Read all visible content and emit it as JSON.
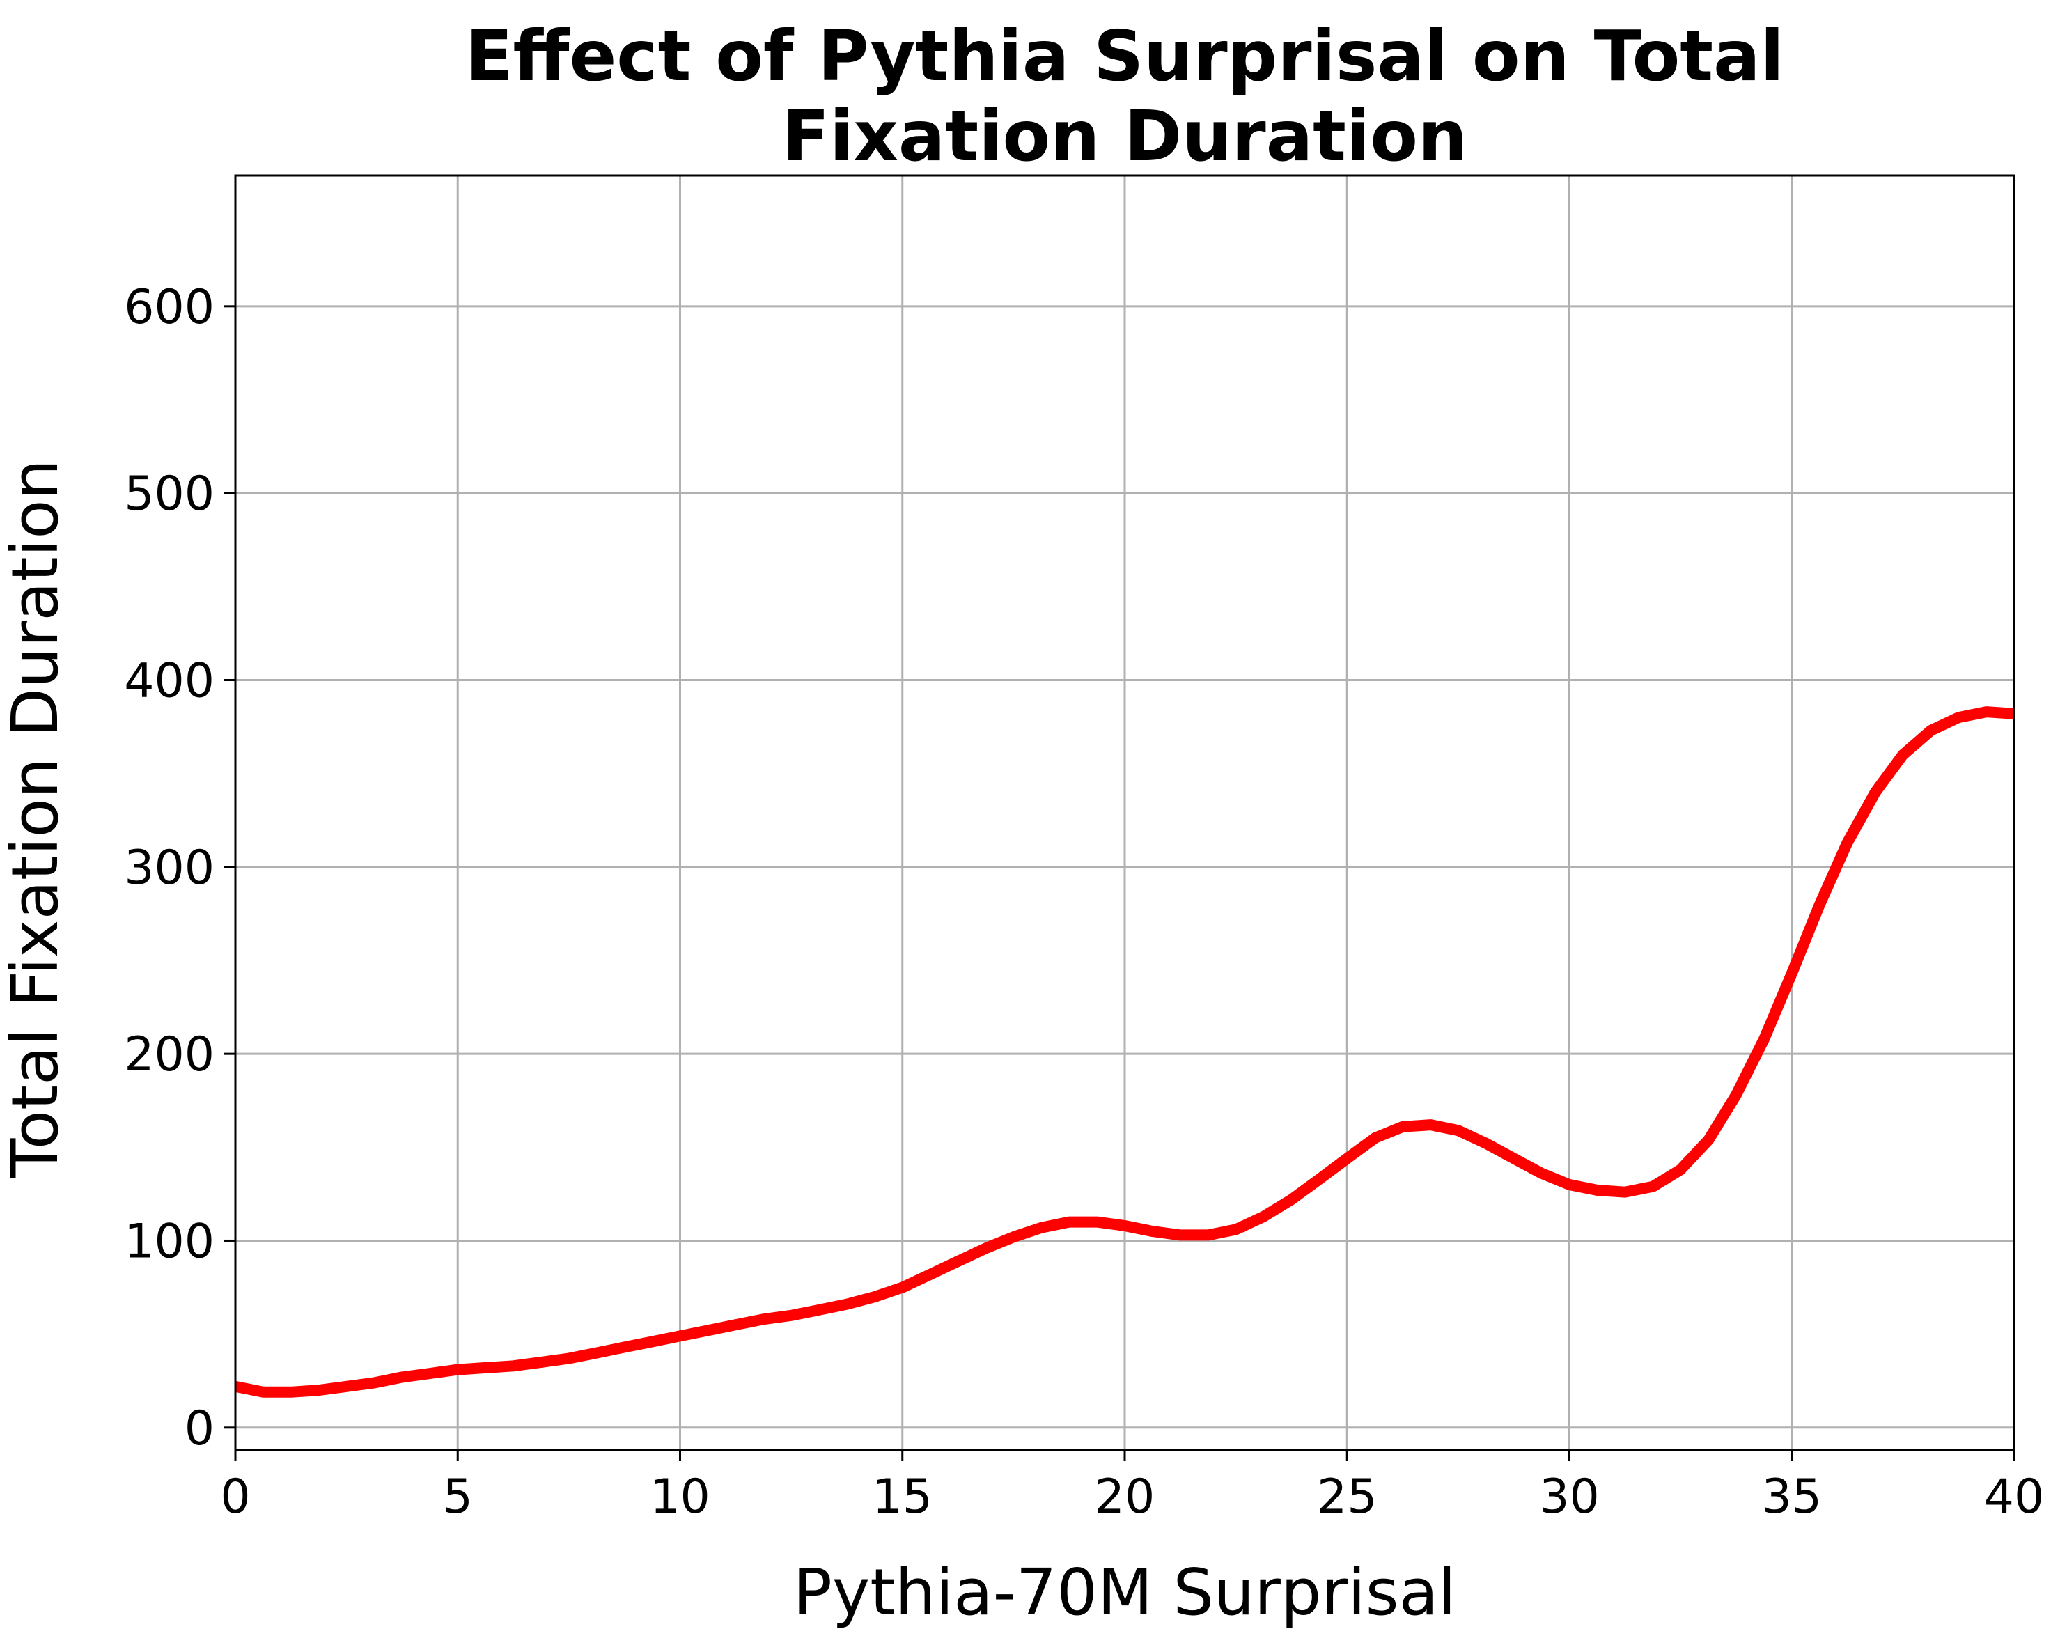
{
  "chart_data": {
    "type": "line",
    "title": [
      "Effect of Pythia Surprisal on Total",
      "Fixation Duration"
    ],
    "xlabel": "Pythia-70M Surprisal",
    "ylabel": "Total Fixation Duration",
    "xlim": [
      0,
      40
    ],
    "ylim": [
      -12,
      670
    ],
    "xticks": [
      0,
      5,
      10,
      15,
      20,
      25,
      30,
      35,
      40
    ],
    "yticks": [
      0,
      100,
      200,
      300,
      400,
      500,
      600
    ],
    "grid": true,
    "legend": "none",
    "series": [
      {
        "color": "#ff0000",
        "x": [
          0,
          0.63,
          1.25,
          1.88,
          2.5,
          3.13,
          3.75,
          4.38,
          5,
          5.63,
          6.25,
          6.88,
          7.5,
          8.13,
          8.75,
          9.38,
          10,
          10.63,
          11.25,
          11.88,
          12.5,
          13.13,
          13.75,
          14.38,
          15,
          15.63,
          16.25,
          16.88,
          17.5,
          18.13,
          18.75,
          19.38,
          20,
          20.63,
          21.25,
          21.88,
          22.5,
          23.13,
          23.75,
          24.38,
          25,
          25.63,
          26.25,
          26.88,
          27.5,
          28.13,
          28.75,
          29.38,
          30,
          30.63,
          31.25,
          31.88,
          32.5,
          33.13,
          33.75,
          34.38,
          35,
          35.63,
          36.25,
          36.88,
          37.5,
          38.13,
          38.75,
          39.38,
          40
        ],
        "y": [
          22,
          19,
          19,
          20,
          22,
          24,
          27,
          29,
          31,
          32,
          33,
          35,
          37,
          40,
          43,
          46,
          49,
          52,
          55,
          58,
          60,
          63,
          66,
          70,
          75,
          82,
          89,
          96,
          102,
          107,
          110,
          110,
          108,
          105,
          103,
          103,
          106,
          113,
          122,
          133,
          144,
          155,
          161,
          162,
          159,
          152,
          144,
          136,
          130,
          127,
          126,
          129,
          138,
          154,
          178,
          208,
          243,
          280,
          313,
          340,
          360,
          373,
          380,
          383,
          382
        ]
      }
    ]
  }
}
